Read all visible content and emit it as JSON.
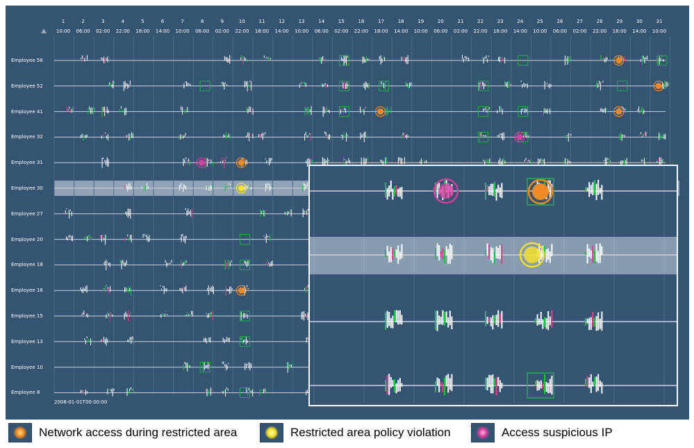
{
  "days": [
    "1",
    "2",
    "3",
    "4",
    "5",
    "6",
    "7",
    "8",
    "9",
    "10",
    "11",
    "12",
    "13",
    "14",
    "15",
    "16",
    "17",
    "18",
    "19",
    "20",
    "21",
    "22",
    "23",
    "24",
    "25",
    "26",
    "27",
    "28",
    "29",
    "30",
    "31"
  ],
  "times": [
    "10:00",
    "06:00",
    "02:00",
    "22:00",
    "18:00",
    "14:00",
    "10:00",
    "06:00",
    "02:00",
    "22:00",
    "18:00",
    "14:00",
    "10:00",
    "06:00",
    "02:00",
    "22:00",
    "18:00",
    "14:00",
    "10:00",
    "06:00",
    "02:00",
    "22:00",
    "18:00",
    "14:00",
    "10:00",
    "06:00",
    "02:00",
    "22:00",
    "18:00",
    "14:00",
    "10:00"
  ],
  "employees": [
    "Employee 56",
    "Employee 52",
    "Employee 41",
    "Employee 32",
    "Employee 31",
    "Employee 30",
    "Employee 27",
    "Employee 20",
    "Employee 18",
    "Employee 16",
    "Employee 15",
    "Employee 13",
    "Employee 10",
    "Employee 8"
  ],
  "date_stamp": "2008-01-01T00:00:00",
  "legend": [
    {
      "label": "Network access during restricted area",
      "color": "#f08a24",
      "icon": "orange-dot-icon"
    },
    {
      "label": "Restricted area policy violation",
      "color": "#f6e02a",
      "icon": "yellow-dot-icon"
    },
    {
      "label": "Access suspicious IP",
      "color": "#d63ea0",
      "icon": "magenta-dot-icon"
    }
  ],
  "colors": {
    "background": "#355472",
    "activity_green": "#22c04a",
    "activity_pink": "#e0408a",
    "box_green": "#22b04a"
  },
  "highlighted_employee": "Employee 30"
}
